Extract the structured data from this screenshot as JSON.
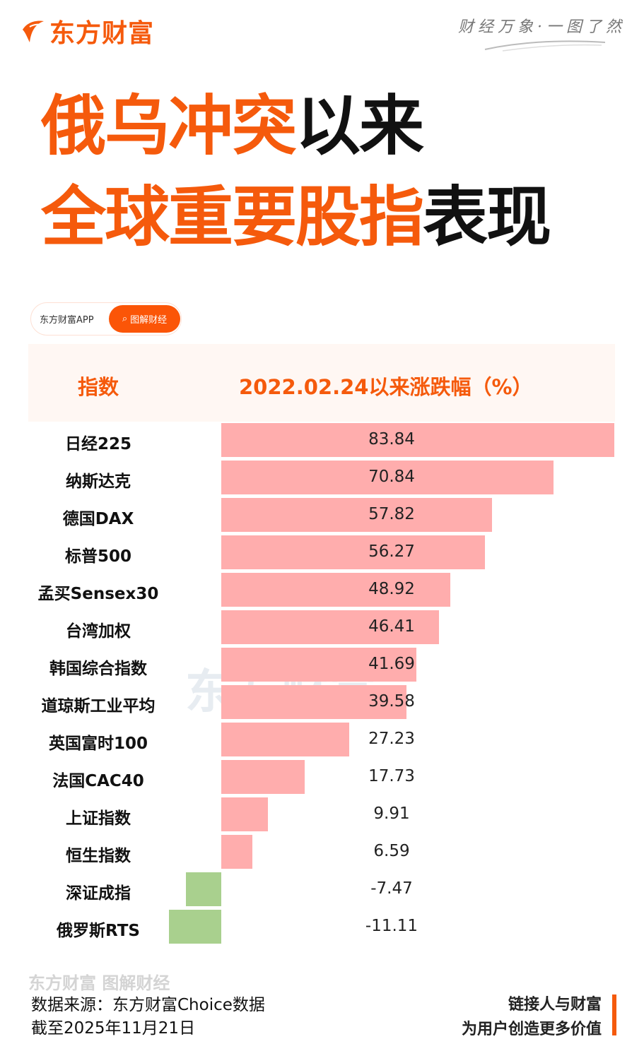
{
  "header": {
    "logo_text": "东方财富",
    "slogan": "财经万象·一图了然"
  },
  "title": {
    "line1_orange": "俄乌冲突",
    "line1_black": "以来",
    "line2_orange": "全球重要股指",
    "line2_black": "表现"
  },
  "tag": {
    "app": "东方财富APP",
    "section": "图解财经"
  },
  "colors": {
    "accent": "#f55a0c",
    "positive": "#ffadad",
    "negative": "#a9d08e"
  },
  "chart_data": {
    "type": "bar",
    "orientation": "horizontal",
    "col_header_index": "指数",
    "col_header_value": "2022.02.24以来涨跌幅（%）",
    "categories": [
      "日经225",
      "纳斯达克",
      "德国DAX",
      "标普500",
      "孟买Sensex30",
      "台湾加权",
      "韩国综合指数",
      "道琼斯工业平均",
      "英国富时100",
      "法国CAC40",
      "上证指数",
      "恒生指数",
      "深证成指",
      "俄罗斯RTS"
    ],
    "values": [
      83.84,
      70.84,
      57.82,
      56.27,
      48.92,
      46.41,
      41.69,
      39.58,
      27.23,
      17.73,
      9.91,
      6.59,
      -7.47,
      -11.11
    ],
    "labels": [
      "83.84",
      "70.84",
      "57.82",
      "56.27",
      "48.92",
      "46.41",
      "41.69",
      "39.58",
      "27.23",
      "17.73",
      "9.91",
      "6.59",
      "-7.47",
      "-11.11"
    ],
    "xlim": [
      -11.11,
      83.84
    ]
  },
  "watermark": "东方财富",
  "footer": {
    "logo": "东方财富 图解财经",
    "source": "数据来源：东方财富Choice数据",
    "date": "截至2025年11月21日",
    "motto1": "链接人与财富",
    "motto2": "为用户创造更多价值"
  }
}
